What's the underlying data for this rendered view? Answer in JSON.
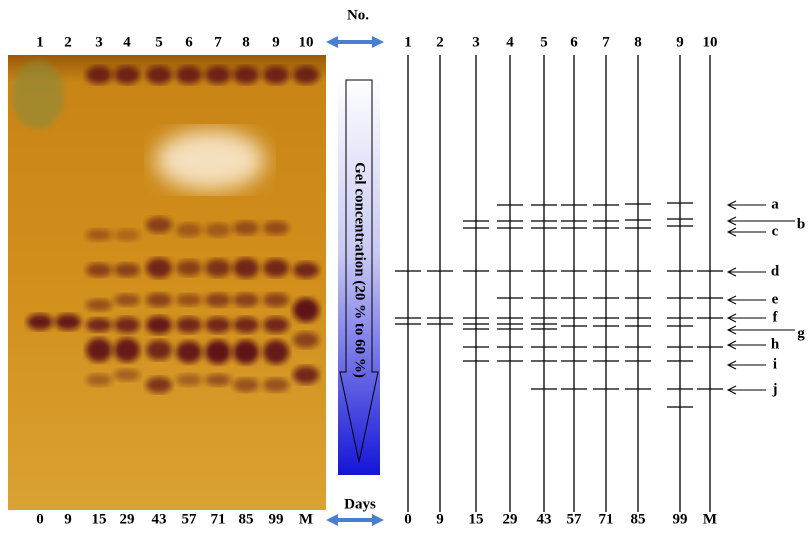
{
  "header": {
    "number_label": "No.",
    "days_label": "Days"
  },
  "lanes": {
    "numbers": [
      "1",
      "2",
      "3",
      "4",
      "5",
      "6",
      "7",
      "8",
      "9",
      "10"
    ],
    "days": [
      "0",
      "9",
      "15",
      "29",
      "43",
      "57",
      "71",
      "85",
      "99",
      "M"
    ]
  },
  "gradient_label": "Gel concentration (20 % to 60 %)",
  "band_labels": [
    "a",
    "b",
    "c",
    "d",
    "e",
    "f",
    "g",
    "h",
    "i",
    "j"
  ]
}
